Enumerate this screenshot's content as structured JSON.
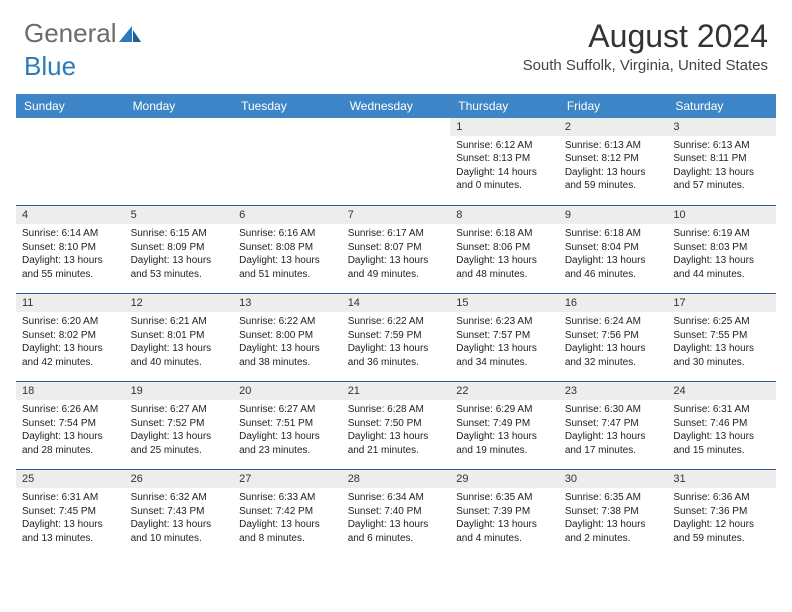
{
  "logo": {
    "gray": "General",
    "blue": "Blue"
  },
  "title": "August 2024",
  "location": "South Suffolk, Virginia, United States",
  "colors": {
    "header_bg": "#3d85c6",
    "header_text": "#ffffff",
    "daynum_bg": "#ededed",
    "row_divider": "#2b5f8e",
    "logo_gray": "#6b6b6b",
    "logo_blue": "#2b7bbc"
  },
  "day_headers": [
    "Sunday",
    "Monday",
    "Tuesday",
    "Wednesday",
    "Thursday",
    "Friday",
    "Saturday"
  ],
  "weeks": [
    [
      null,
      null,
      null,
      null,
      {
        "n": "1",
        "sr": "6:12 AM",
        "ss": "8:13 PM",
        "dl": "14 hours and 0 minutes."
      },
      {
        "n": "2",
        "sr": "6:13 AM",
        "ss": "8:12 PM",
        "dl": "13 hours and 59 minutes."
      },
      {
        "n": "3",
        "sr": "6:13 AM",
        "ss": "8:11 PM",
        "dl": "13 hours and 57 minutes."
      }
    ],
    [
      {
        "n": "4",
        "sr": "6:14 AM",
        "ss": "8:10 PM",
        "dl": "13 hours and 55 minutes."
      },
      {
        "n": "5",
        "sr": "6:15 AM",
        "ss": "8:09 PM",
        "dl": "13 hours and 53 minutes."
      },
      {
        "n": "6",
        "sr": "6:16 AM",
        "ss": "8:08 PM",
        "dl": "13 hours and 51 minutes."
      },
      {
        "n": "7",
        "sr": "6:17 AM",
        "ss": "8:07 PM",
        "dl": "13 hours and 49 minutes."
      },
      {
        "n": "8",
        "sr": "6:18 AM",
        "ss": "8:06 PM",
        "dl": "13 hours and 48 minutes."
      },
      {
        "n": "9",
        "sr": "6:18 AM",
        "ss": "8:04 PM",
        "dl": "13 hours and 46 minutes."
      },
      {
        "n": "10",
        "sr": "6:19 AM",
        "ss": "8:03 PM",
        "dl": "13 hours and 44 minutes."
      }
    ],
    [
      {
        "n": "11",
        "sr": "6:20 AM",
        "ss": "8:02 PM",
        "dl": "13 hours and 42 minutes."
      },
      {
        "n": "12",
        "sr": "6:21 AM",
        "ss": "8:01 PM",
        "dl": "13 hours and 40 minutes."
      },
      {
        "n": "13",
        "sr": "6:22 AM",
        "ss": "8:00 PM",
        "dl": "13 hours and 38 minutes."
      },
      {
        "n": "14",
        "sr": "6:22 AM",
        "ss": "7:59 PM",
        "dl": "13 hours and 36 minutes."
      },
      {
        "n": "15",
        "sr": "6:23 AM",
        "ss": "7:57 PM",
        "dl": "13 hours and 34 minutes."
      },
      {
        "n": "16",
        "sr": "6:24 AM",
        "ss": "7:56 PM",
        "dl": "13 hours and 32 minutes."
      },
      {
        "n": "17",
        "sr": "6:25 AM",
        "ss": "7:55 PM",
        "dl": "13 hours and 30 minutes."
      }
    ],
    [
      {
        "n": "18",
        "sr": "6:26 AM",
        "ss": "7:54 PM",
        "dl": "13 hours and 28 minutes."
      },
      {
        "n": "19",
        "sr": "6:27 AM",
        "ss": "7:52 PM",
        "dl": "13 hours and 25 minutes."
      },
      {
        "n": "20",
        "sr": "6:27 AM",
        "ss": "7:51 PM",
        "dl": "13 hours and 23 minutes."
      },
      {
        "n": "21",
        "sr": "6:28 AM",
        "ss": "7:50 PM",
        "dl": "13 hours and 21 minutes."
      },
      {
        "n": "22",
        "sr": "6:29 AM",
        "ss": "7:49 PM",
        "dl": "13 hours and 19 minutes."
      },
      {
        "n": "23",
        "sr": "6:30 AM",
        "ss": "7:47 PM",
        "dl": "13 hours and 17 minutes."
      },
      {
        "n": "24",
        "sr": "6:31 AM",
        "ss": "7:46 PM",
        "dl": "13 hours and 15 minutes."
      }
    ],
    [
      {
        "n": "25",
        "sr": "6:31 AM",
        "ss": "7:45 PM",
        "dl": "13 hours and 13 minutes."
      },
      {
        "n": "26",
        "sr": "6:32 AM",
        "ss": "7:43 PM",
        "dl": "13 hours and 10 minutes."
      },
      {
        "n": "27",
        "sr": "6:33 AM",
        "ss": "7:42 PM",
        "dl": "13 hours and 8 minutes."
      },
      {
        "n": "28",
        "sr": "6:34 AM",
        "ss": "7:40 PM",
        "dl": "13 hours and 6 minutes."
      },
      {
        "n": "29",
        "sr": "6:35 AM",
        "ss": "7:39 PM",
        "dl": "13 hours and 4 minutes."
      },
      {
        "n": "30",
        "sr": "6:35 AM",
        "ss": "7:38 PM",
        "dl": "13 hours and 2 minutes."
      },
      {
        "n": "31",
        "sr": "6:36 AM",
        "ss": "7:36 PM",
        "dl": "12 hours and 59 minutes."
      }
    ]
  ],
  "labels": {
    "sunrise": "Sunrise: ",
    "sunset": "Sunset: ",
    "daylight": "Daylight: "
  }
}
